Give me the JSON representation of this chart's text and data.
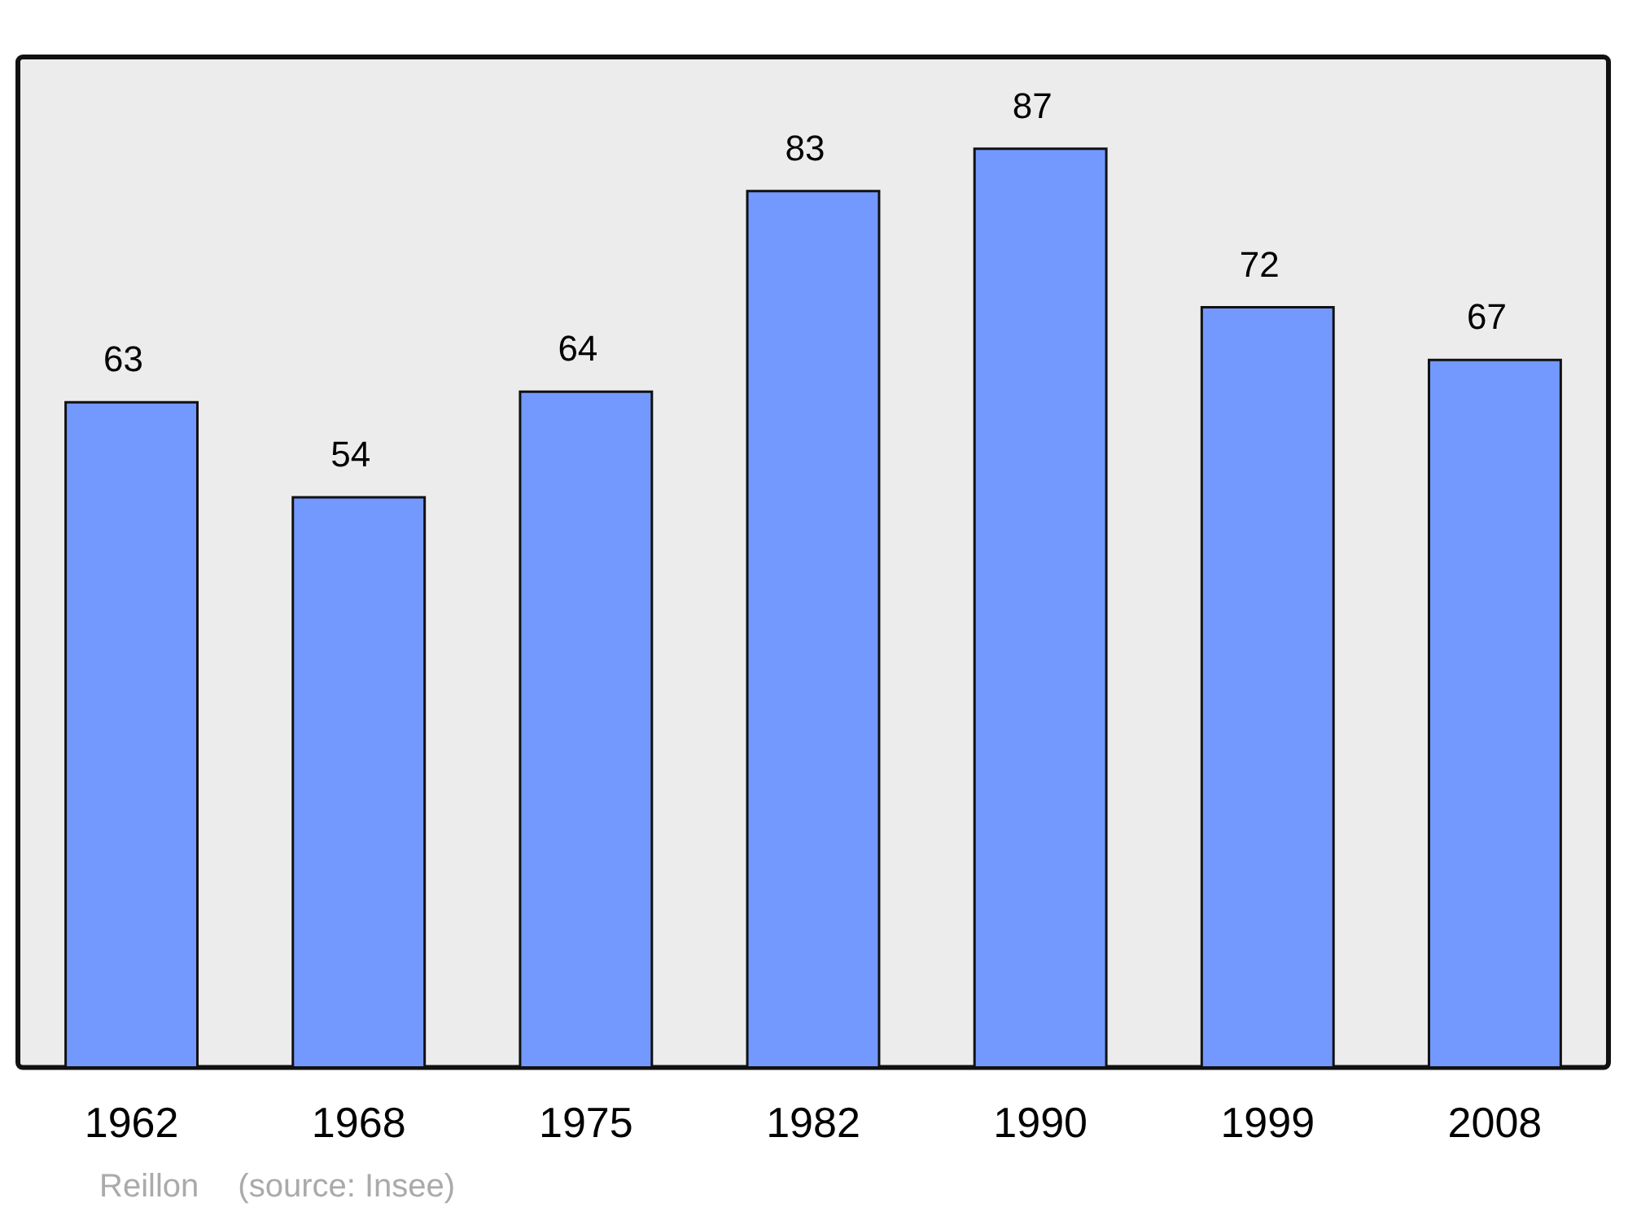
{
  "chart_data": {
    "type": "bar",
    "categories": [
      "1962",
      "1968",
      "1975",
      "1982",
      "1990",
      "1999",
      "2008"
    ],
    "values": [
      63,
      54,
      64,
      83,
      87,
      72,
      67
    ],
    "color": "#7399ff",
    "data_labels": true,
    "grid": false,
    "legend": false,
    "annotations": [
      "Reillon",
      "(source: Insee)"
    ]
  }
}
